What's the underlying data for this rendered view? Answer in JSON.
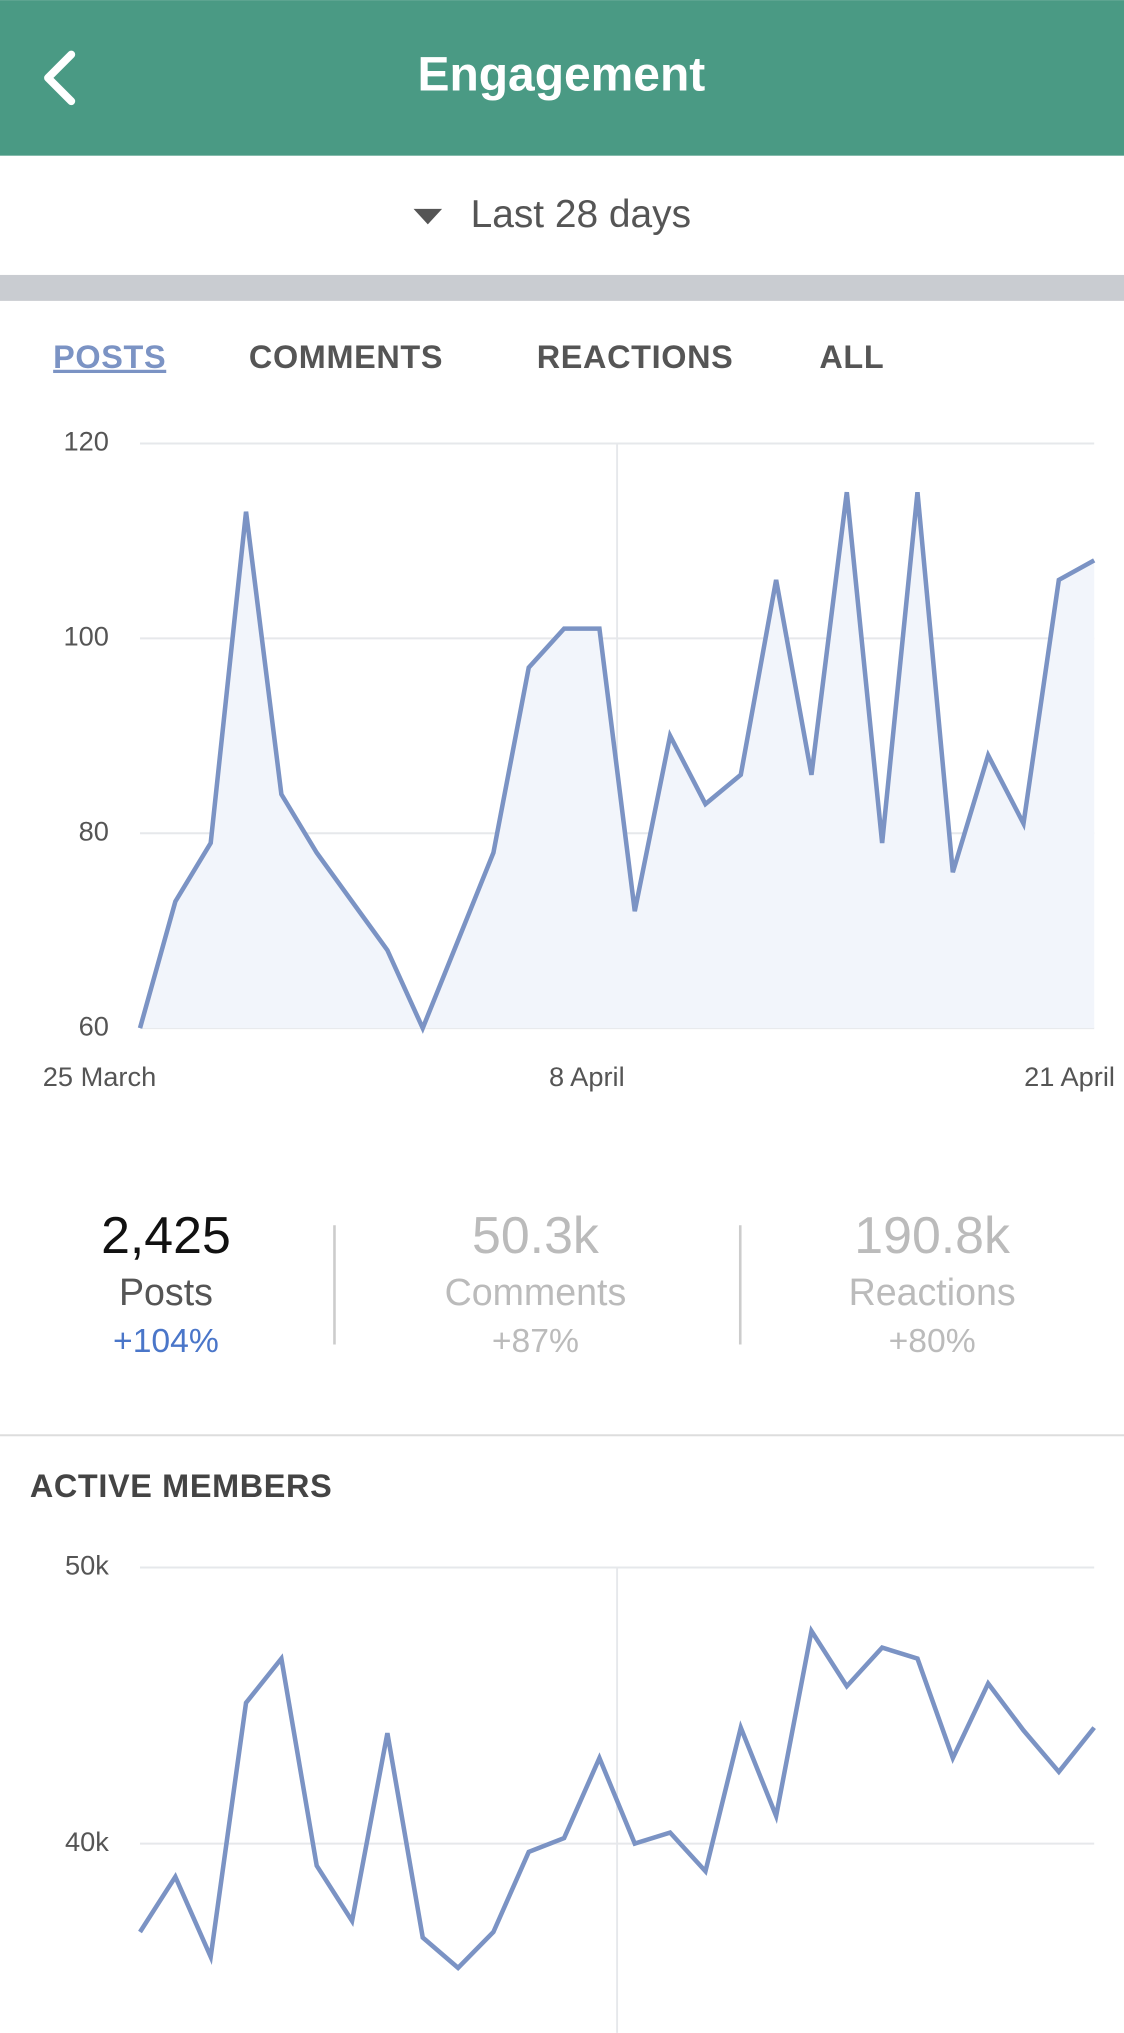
{
  "header": {
    "title": "Engagement"
  },
  "date_range": "Last 28 days",
  "tabs": [
    "POSTS",
    "COMMENTS",
    "REACTIONS",
    "ALL"
  ],
  "posts_chart": {
    "type": "area",
    "categories": [
      "25 March",
      null,
      null,
      null,
      null,
      null,
      null,
      null,
      null,
      null,
      null,
      null,
      null,
      null,
      "8 April",
      null,
      null,
      null,
      null,
      null,
      null,
      null,
      null,
      null,
      null,
      null,
      null,
      "21 April"
    ],
    "values": [
      60,
      73,
      79,
      113,
      84,
      78,
      73,
      68,
      60,
      69,
      78,
      97,
      101,
      101,
      72,
      90,
      83,
      86,
      106,
      86,
      115,
      79,
      115,
      76,
      88,
      81,
      106,
      108
    ],
    "ylim": [
      60,
      120
    ],
    "yticks": [
      60,
      80,
      100,
      120
    ],
    "grid": true,
    "color": "#7b93c4"
  },
  "stats": [
    {
      "value": "2,425",
      "label": "Posts",
      "change": "+104%"
    },
    {
      "value": "50.3k",
      "label": "Comments",
      "change": "+87%"
    },
    {
      "value": "190.8k",
      "label": "Reactions",
      "change": "+80%"
    }
  ],
  "members_chart": {
    "type": "line",
    "title": "ACTIVE MEMBERS",
    "values": [
      36.8,
      38.8,
      35.9,
      45.1,
      46.7,
      39.2,
      37.2,
      44.0,
      36.6,
      35.5,
      36.8,
      39.7,
      40.2,
      43.1,
      40.0,
      40.4,
      39.0,
      44.2,
      41.0,
      47.7,
      45.7,
      47.1,
      46.7,
      43.1,
      45.8,
      44.1,
      42.6,
      44.2
    ],
    "ylim": [
      33,
      50
    ],
    "yticks": [
      {
        "value": 40,
        "label": "40k"
      },
      {
        "value": 50,
        "label": "50k"
      }
    ],
    "grid": true,
    "color": "#7b93c4"
  }
}
